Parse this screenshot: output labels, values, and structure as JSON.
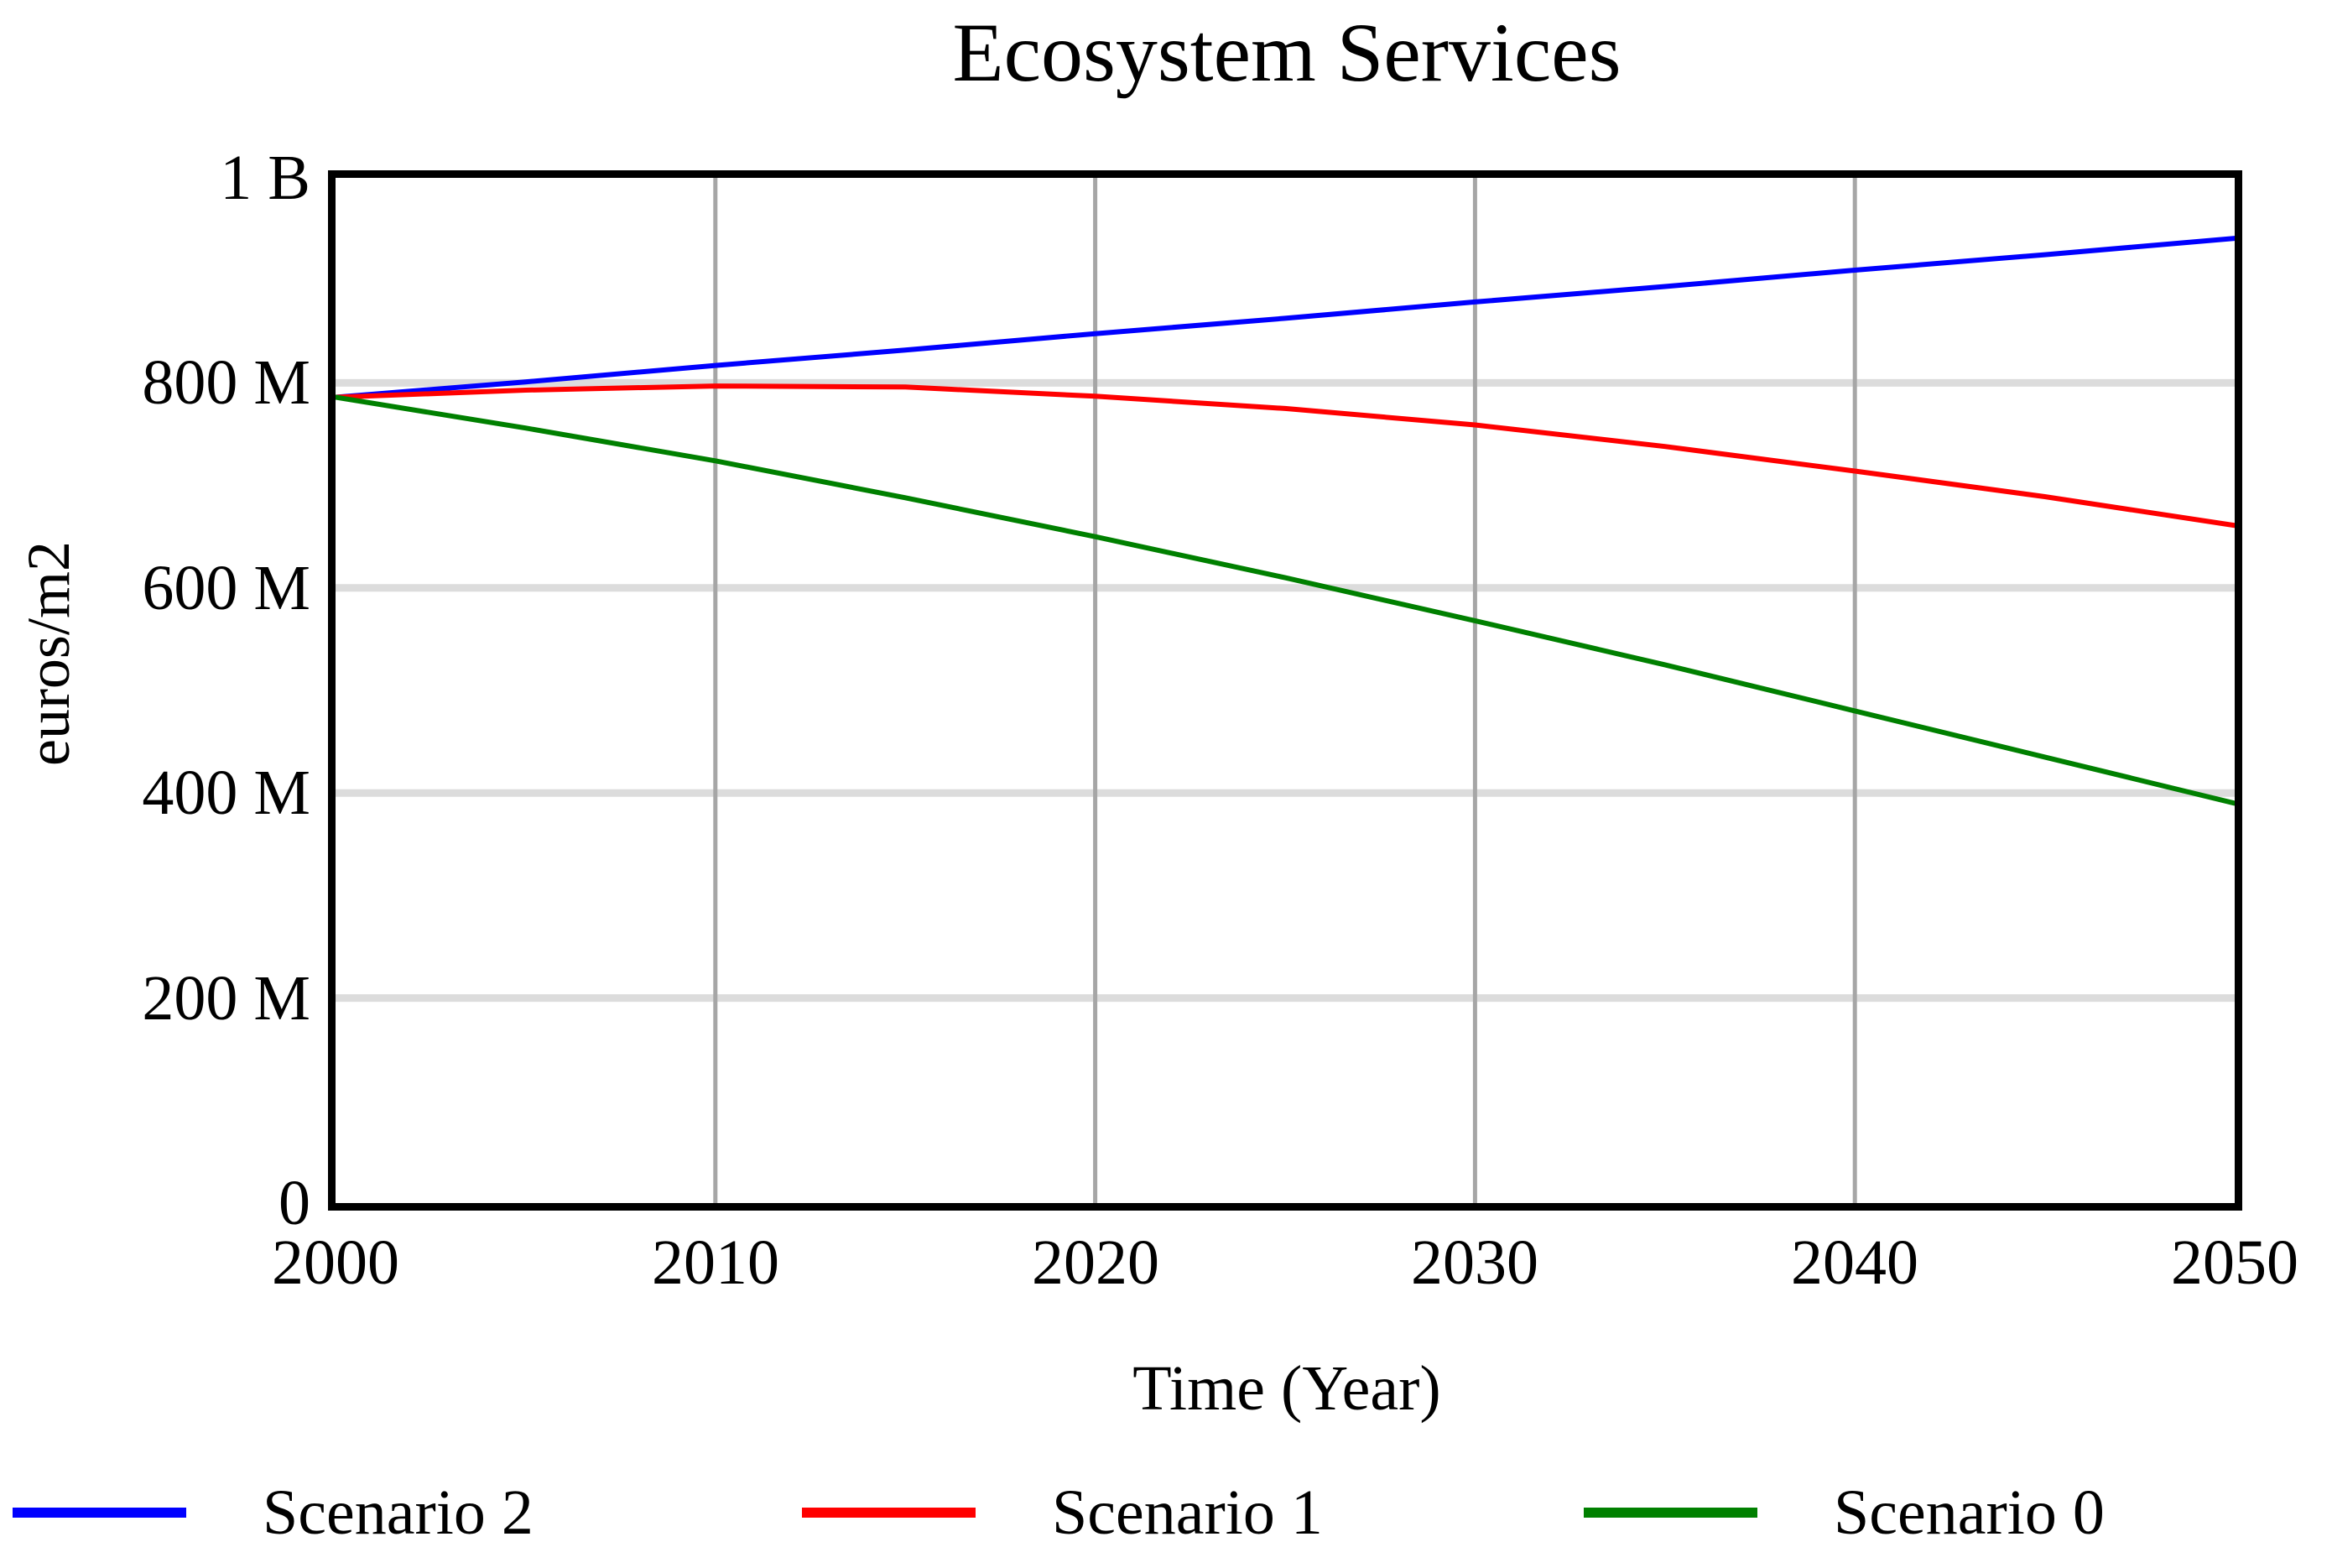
{
  "chart_data": {
    "type": "line",
    "title": "Ecosystem Services",
    "xlabel": "Time (Year)",
    "ylabel": "euros/m2",
    "xlim": [
      2000,
      2050
    ],
    "ylim_millions": [
      0,
      1000
    ],
    "grid": true,
    "legend_position": "bottom",
    "frame_color": "#000000",
    "gridline_colors": {
      "horizontal": "#dcdcdc",
      "vertical": "#a6a6a6"
    },
    "x_ticks": [
      {
        "label": "2000",
        "year": 2000
      },
      {
        "label": "2010",
        "year": 2010
      },
      {
        "label": "2020",
        "year": 2020
      },
      {
        "label": "2030",
        "year": 2030
      },
      {
        "label": "2040",
        "year": 2040
      },
      {
        "label": "2050",
        "year": 2050
      }
    ],
    "y_ticks": [
      {
        "label": "0",
        "value_millions": 0
      },
      {
        "label": "200 M",
        "value_millions": 200
      },
      {
        "label": "400 M",
        "value_millions": 400
      },
      {
        "label": "600 M",
        "value_millions": 600
      },
      {
        "label": "800 M",
        "value_millions": 800
      },
      {
        "label": "1 B",
        "value_millions": 1000
      }
    ],
    "x_years": [
      2000,
      2005,
      2010,
      2015,
      2020,
      2025,
      2030,
      2035,
      2040,
      2045,
      2050
    ],
    "series": [
      {
        "name": "Scenario 2",
        "color": "#0000ff",
        "values_millions": [
          786,
          801,
          817,
          832,
          848,
          863,
          879,
          894,
          910,
          925,
          941
        ]
      },
      {
        "name": "Scenario 1",
        "color": "#ff0000",
        "values_millions": [
          786,
          793,
          797,
          796,
          787,
          775,
          759,
          738,
          714,
          689,
          661
        ]
      },
      {
        "name": "Scenario 0",
        "color": "#008000",
        "values_millions": [
          786,
          756,
          724,
          688,
          650,
          610,
          568,
          525,
          480,
          435,
          390
        ]
      }
    ]
  }
}
